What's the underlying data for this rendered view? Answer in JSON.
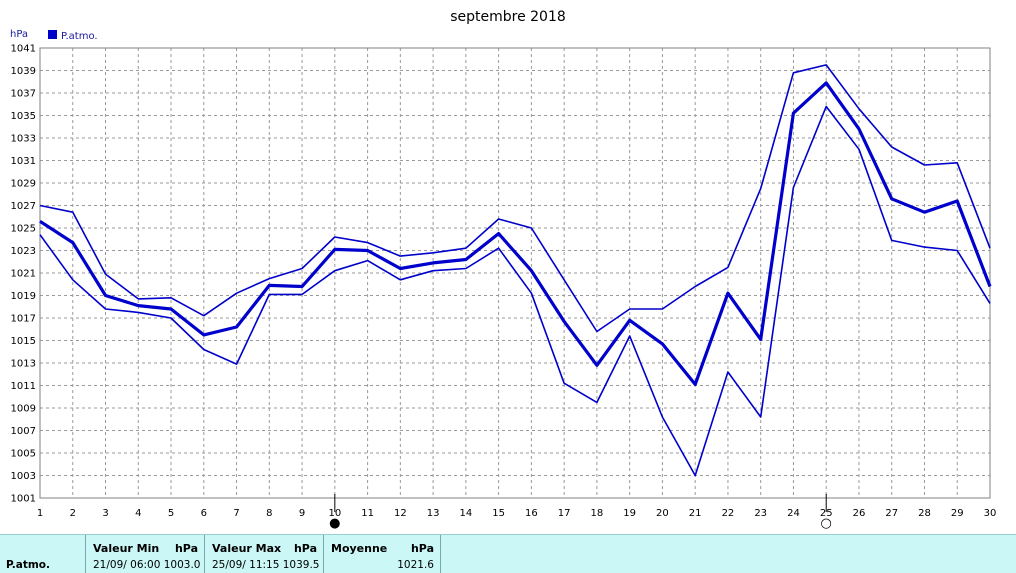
{
  "chart_data": {
    "type": "line",
    "title": "septembre 2018",
    "ylabel": "hPa",
    "legend": {
      "label": "P.atmo.",
      "color": "#0000cc",
      "placement": "top-left"
    },
    "ylim": [
      1001,
      1041
    ],
    "yticks": [
      1001,
      1003,
      1005,
      1007,
      1009,
      1011,
      1013,
      1015,
      1017,
      1019,
      1021,
      1023,
      1025,
      1027,
      1029,
      1031,
      1033,
      1035,
      1037,
      1039,
      1041
    ],
    "x": [
      1,
      2,
      3,
      4,
      5,
      6,
      7,
      8,
      9,
      10,
      11,
      12,
      13,
      14,
      15,
      16,
      17,
      18,
      19,
      20,
      21,
      22,
      23,
      24,
      25,
      26,
      27,
      28,
      29,
      30
    ],
    "grid": true,
    "series": [
      {
        "name": "max",
        "values": [
          1027.0,
          1026.4,
          1020.9,
          1018.7,
          1018.8,
          1017.2,
          1019.2,
          1020.5,
          1021.4,
          1024.2,
          1023.7,
          1022.5,
          1022.8,
          1023.2,
          1025.8,
          1025.0,
          1020.4,
          1015.8,
          1017.8,
          1017.8,
          1019.8,
          1021.5,
          1028.5,
          1038.8,
          1039.5,
          1035.6,
          1032.2,
          1030.6,
          1030.8,
          1023.2
        ]
      },
      {
        "name": "moyenne",
        "values": [
          1025.6,
          1023.7,
          1019.0,
          1018.1,
          1017.8,
          1015.5,
          1016.2,
          1019.9,
          1019.8,
          1023.1,
          1023.0,
          1021.4,
          1021.9,
          1022.2,
          1024.5,
          1021.2,
          1016.7,
          1012.8,
          1016.8,
          1014.7,
          1011.1,
          1019.2,
          1015.1,
          1035.2,
          1037.9,
          1033.8,
          1027.6,
          1026.4,
          1027.4,
          1019.8
        ]
      },
      {
        "name": "min",
        "values": [
          1024.4,
          1020.4,
          1017.8,
          1017.5,
          1017.0,
          1014.2,
          1012.9,
          1019.1,
          1019.1,
          1021.2,
          1022.1,
          1020.4,
          1021.2,
          1021.4,
          1023.2,
          1019.2,
          1011.2,
          1009.5,
          1015.4,
          1008.2,
          1003.0,
          1012.2,
          1008.2,
          1028.6,
          1035.8,
          1032.0,
          1023.9,
          1023.3,
          1023.0,
          1018.3
        ]
      }
    ],
    "moon_phases": [
      {
        "day": 10,
        "phase": "new-moon",
        "symbol": "●"
      },
      {
        "day": 25,
        "phase": "full-moon",
        "symbol": "○"
      }
    ]
  },
  "stats": {
    "label": "P.atmo.",
    "min": {
      "header": "Valeur Min",
      "unit": "hPa",
      "value": "21/09/  06:00 1003.0"
    },
    "max": {
      "header": "Valeur Max",
      "unit": "hPa",
      "value": "25/09/  11:15 1039.5"
    },
    "avg": {
      "header": "Moyenne",
      "unit": "hPa",
      "value": "1021.6"
    }
  }
}
